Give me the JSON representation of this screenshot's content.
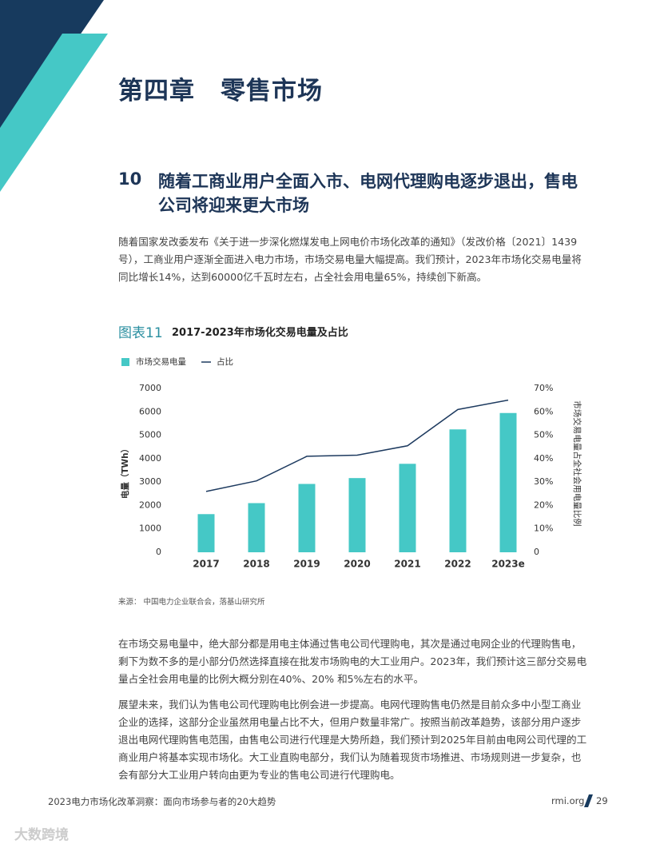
{
  "chapter_title": "第四章　零售市场",
  "section": {
    "number": "10",
    "title": "随着工商业用户全面入市、电网代理购电逐步退出，售电公司将迎来更大市场"
  },
  "paragraphs": [
    "随着国家发改委发布《关于进一步深化燃煤发电上网电价市场化改革的通知》（发改价格〔2021〕1439号），工商业用户逐渐全面进入电力市场，市场交易电量大幅提高。我们预计，2023年市场化交易电量将同比增长14%，达到60000亿千瓦时左右，占全社会用电量65%，持续创下新高。",
    "在市场交易电量中，绝大部分都是用电主体通过售电公司代理购电，其次是通过电网企业的代理购售电，剩下为数不多的是小部分仍然选择直接在批发市场购电的大工业用户。2023年，我们预计这三部分交易电量占全社会用电量的比例大概分别在40%、20% 和5%左右的水平。",
    "展望未来，我们认为售电公司代理购电比例会进一步提高。电网代理购售电仍然是目前众多中小型工商业企业的选择，这部分企业虽然用电量占比不大，但用户数量非常广。按照当前改革趋势，该部分用户逐步退出电网代理购售电范围，由售电公司进行代理是大势所趋，我们预计到2025年目前由电网公司代理的工商业用户将基本实现市场化。大工业直购电部分，我们认为随着现货市场推进、市场规则进一步复杂，也会有部分大工业用户转向由更为专业的售电公司进行代理购电。"
  ],
  "figure": {
    "label": "图表11",
    "source": "来源： 中国电力企业联合会，落基山研究所"
  },
  "chart_data": {
    "type": "bar",
    "title": "2017-2023年市场化交易电量及占比",
    "categories": [
      "2017",
      "2018",
      "2019",
      "2020",
      "2021",
      "2022",
      "2023e"
    ],
    "series": [
      {
        "name": "市场交易电量",
        "type": "bar",
        "color": "#45c8c6",
        "values": [
          1630,
          2100,
          2920,
          3170,
          3780,
          5250,
          5950
        ]
      },
      {
        "name": "占比",
        "type": "line",
        "axis": "y2",
        "color": "#1d3a5f",
        "values": [
          26,
          30.5,
          41,
          41.5,
          45.5,
          61,
          65
        ]
      }
    ],
    "ylabel": "电量（TWh）",
    "y2label": "市场交易电量占全社会用电量比例",
    "ylim": [
      0,
      7000
    ],
    "yticks": [
      0,
      1000,
      2000,
      3000,
      4000,
      5000,
      6000,
      7000
    ],
    "y2lim": [
      0,
      70
    ],
    "y2ticks": [
      {
        "value": 0,
        "label": "0"
      },
      {
        "value": 10,
        "label": "10%"
      },
      {
        "value": 20,
        "label": "20%"
      },
      {
        "value": 30,
        "label": "30%"
      },
      {
        "value": 40,
        "label": "40%"
      },
      {
        "value": 50,
        "label": "50%"
      },
      {
        "value": 60,
        "label": "60%"
      },
      {
        "value": 70,
        "label": "70%"
      }
    ],
    "grid": false,
    "legend": "top-left"
  },
  "footer": {
    "title": "2023电力市场化改革洞察：面向市场参与者的20大趋势",
    "site": "rmi.org",
    "page": "29"
  },
  "watermark": "大数跨境"
}
